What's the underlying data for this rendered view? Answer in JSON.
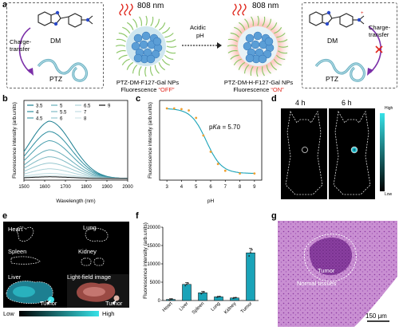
{
  "panel_a": {
    "label": "a",
    "laser_left": "808 nm",
    "laser_right": "808 nm",
    "arrow_text_1": "Acidic",
    "arrow_text_2": "pH",
    "left_box": {
      "dm": "DM",
      "ptz": "PTZ",
      "charge_1": "Charge-",
      "charge_2": "transfer"
    },
    "right_box": {
      "dm": "DM",
      "ptz": "PTZ",
      "charge_1": "Charge-",
      "charge_2": "transfer"
    },
    "np_left_name": "PTZ-DM-F127-Gal NPs",
    "np_left_state_prefix": "Fluorescence ",
    "np_left_state": "“OFF”",
    "np_right_name": "PTZ-DM-H-F127-Gal NPs",
    "np_right_state_prefix": "Fluorescence ",
    "np_right_state": "“ON”",
    "plus_sign": "+"
  },
  "panel_b": {
    "label": "b",
    "chart_data": {
      "type": "line",
      "xlabel": "Wavelength (nm)",
      "ylabel": "Fluorescence intensity (arb.units)",
      "xlim": [
        1500,
        2000
      ],
      "xticks": [
        1500,
        1600,
        1700,
        1800,
        1900,
        2000
      ],
      "legend_placement": "top-left",
      "legend": [
        "3.5",
        "4",
        "4.5",
        "5",
        "5.5",
        "6",
        "6.5",
        "7",
        "8",
        "9"
      ],
      "series_peak_relative": [
        1.0,
        0.82,
        0.66,
        0.5,
        0.38,
        0.27,
        0.17,
        0.09,
        0.05,
        0.03
      ],
      "peak_wavelength": 1620
    }
  },
  "panel_c": {
    "label": "c",
    "chart_data": {
      "type": "line",
      "xlabel": "pH",
      "ylabel": "Fluorescence intensity (arb.units)",
      "xlim": [
        2.5,
        9.5
      ],
      "xticks": [
        "3",
        "4",
        "5",
        "6",
        "7",
        "8",
        "9"
      ],
      "annotation": "pKa = 5.70",
      "annotation_prefix": "p",
      "annotation_italic": "Ka",
      "annotation_suffix": " = 5.70",
      "points": [
        {
          "x": 3.0,
          "y": 1.0
        },
        {
          "x": 3.5,
          "y": 1.0
        },
        {
          "x": 4.0,
          "y": 0.99
        },
        {
          "x": 4.5,
          "y": 0.97
        },
        {
          "x": 5.0,
          "y": 0.86
        },
        {
          "x": 5.5,
          "y": 0.6
        },
        {
          "x": 6.0,
          "y": 0.36
        },
        {
          "x": 6.5,
          "y": 0.18
        },
        {
          "x": 7.0,
          "y": 0.08
        },
        {
          "x": 8.0,
          "y": 0.04
        },
        {
          "x": 9.0,
          "y": 0.04
        }
      ]
    }
  },
  "panel_d": {
    "label": "d",
    "time_1": "4 h",
    "time_2": "6 h",
    "colorbar_high": "High",
    "colorbar_low": "Low"
  },
  "panel_e": {
    "label": "e",
    "organs": [
      "Heart",
      "Lung",
      "Spleen",
      "Kidney",
      "Liver"
    ],
    "light_field": "Light-field image",
    "tumor_1": "Tumor",
    "tumor_2": "Tumor",
    "colorbar_low": "Low",
    "colorbar_high": "High"
  },
  "panel_f": {
    "label": "f",
    "chart_data": {
      "type": "bar",
      "ylabel": "Fluorescence intensity (arb.units)",
      "ylim": [
        0,
        20000
      ],
      "yticks": [
        "0",
        "5000",
        "10000",
        "15000",
        "20000"
      ],
      "categories": [
        "Heart",
        "Liver",
        "Spleen",
        "Lung",
        "Kidney",
        "Tumor"
      ],
      "values": [
        300,
        4400,
        2100,
        1000,
        700,
        13000
      ],
      "errors": [
        200,
        500,
        400,
        150,
        150,
        1200
      ],
      "bar_color": "#1aa3b8"
    }
  },
  "panel_g": {
    "label": "g",
    "tumor": "Tumor",
    "normal": "Normal tissues",
    "scale": "150 μm"
  }
}
